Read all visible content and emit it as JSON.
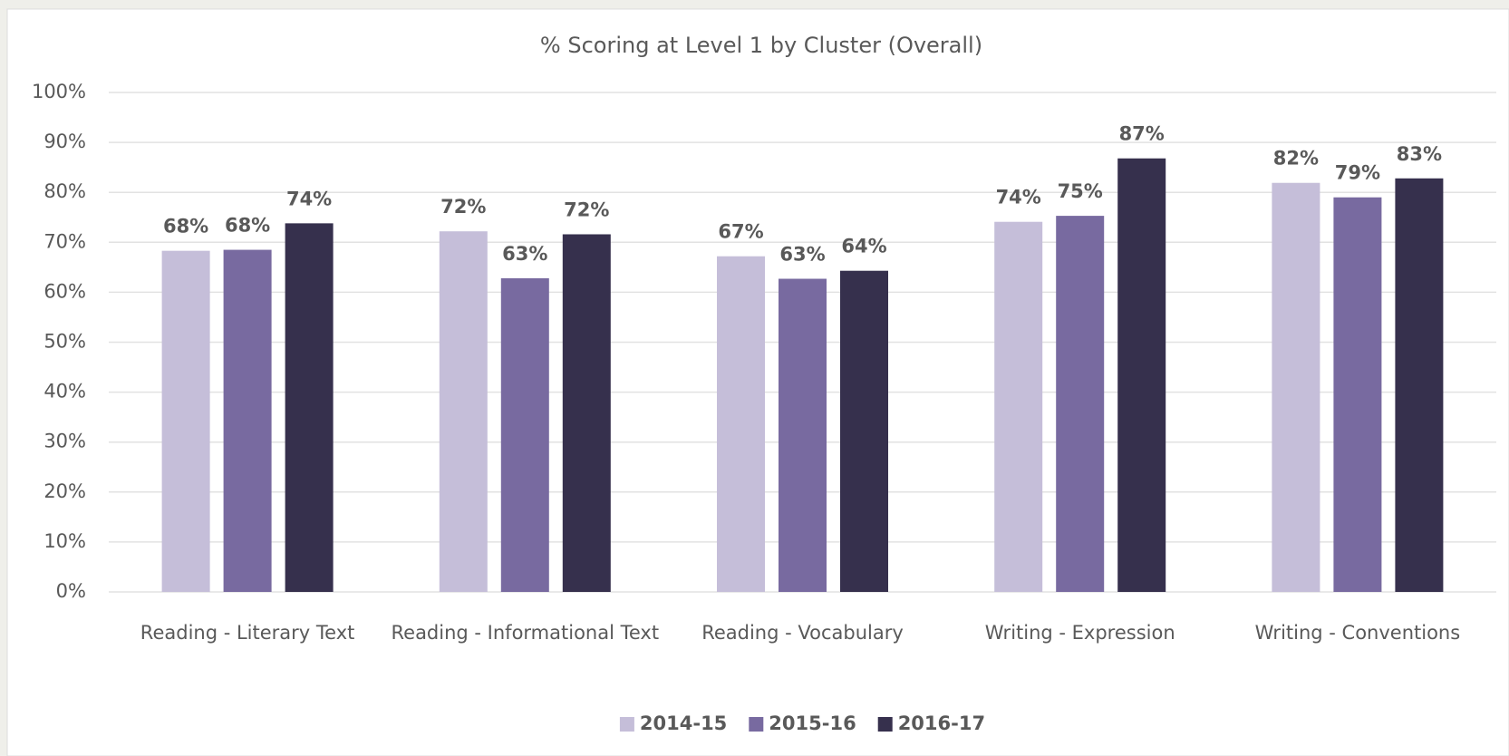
{
  "chart_data": {
    "type": "bar",
    "title": "% Scoring at Level 1 by Cluster (Overall)",
    "categories": [
      "Reading - Literary Text",
      "Reading - Informational Text",
      "Reading - Vocabulary",
      "Writing - Expression",
      "Writing - Conventions"
    ],
    "series": [
      {
        "name": "2014-15",
        "color": "#c5bed9",
        "values": [
          68.3,
          72.2,
          67.2,
          74.1,
          81.9
        ],
        "value_labels": [
          "68%",
          "72%",
          "67%",
          "74%",
          "82%"
        ]
      },
      {
        "name": "2015-16",
        "color": "#786aa0",
        "values": [
          68.5,
          62.8,
          62.7,
          75.3,
          79.0
        ],
        "value_labels": [
          "68%",
          "63%",
          "63%",
          "75%",
          "79%"
        ]
      },
      {
        "name": "2016-17",
        "color": "#36304d",
        "values": [
          73.8,
          71.6,
          64.3,
          86.8,
          82.8
        ],
        "value_labels": [
          "74%",
          "72%",
          "64%",
          "87%",
          "83%"
        ]
      }
    ],
    "ylim": [
      0,
      100
    ],
    "yticks": [
      {
        "value": 0,
        "label": "0%"
      },
      {
        "value": 10,
        "label": "10%"
      },
      {
        "value": 20,
        "label": "20%"
      },
      {
        "value": 30,
        "label": "30%"
      },
      {
        "value": 40,
        "label": "40%"
      },
      {
        "value": 50,
        "label": "50%"
      },
      {
        "value": 60,
        "label": "60%"
      },
      {
        "value": 70,
        "label": "70%"
      },
      {
        "value": 80,
        "label": "80%"
      },
      {
        "value": 90,
        "label": "90%"
      },
      {
        "value": 100,
        "label": "100%"
      }
    ],
    "grid": true,
    "legend": "bottom"
  }
}
